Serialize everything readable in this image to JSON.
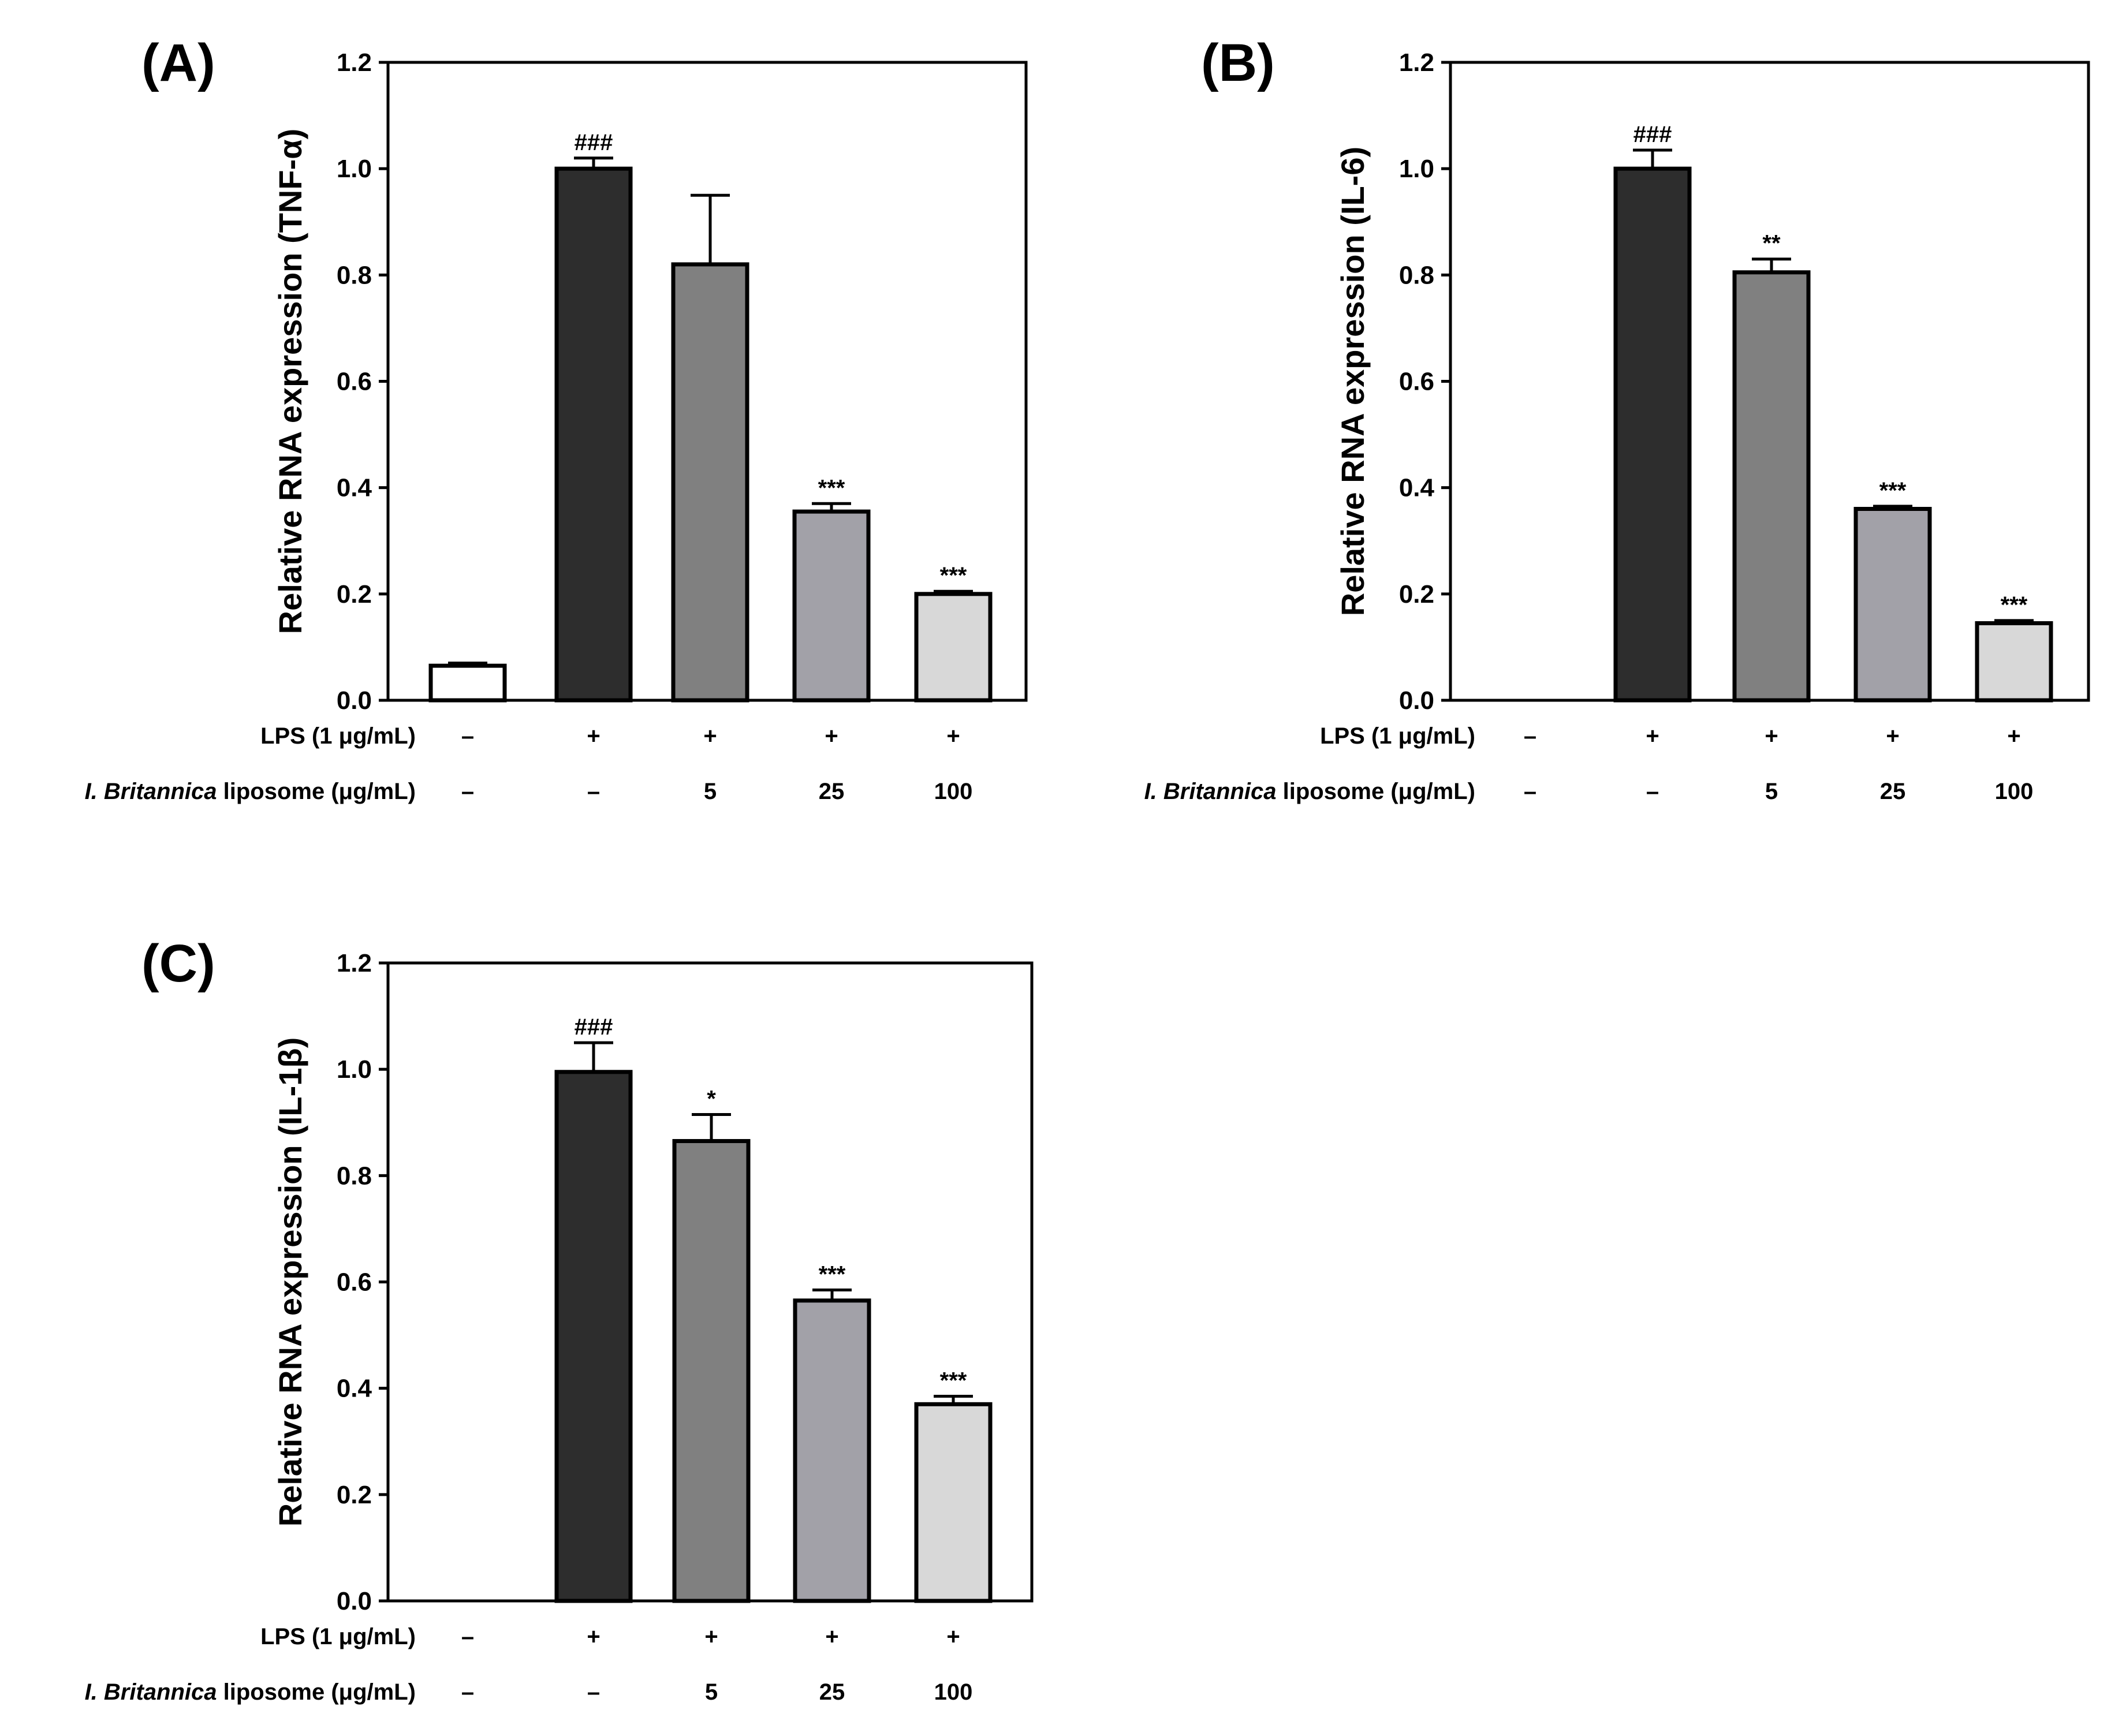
{
  "chart_data": [
    {
      "panel": "(A)",
      "type": "bar",
      "ylabel": "Relative RNA expression (TNF-α)",
      "ylim": [
        0,
        1.2
      ],
      "yticks": [
        "0.0",
        "0.2",
        "0.4",
        "0.6",
        "0.8",
        "1.0",
        "1.2"
      ],
      "values": [
        0.065,
        1.0,
        0.82,
        0.355,
        0.2
      ],
      "errors": [
        0.005,
        0.02,
        0.13,
        0.015,
        0.005
      ],
      "significance": [
        "",
        "###",
        "",
        "***",
        "***"
      ],
      "colors": [
        "#ffffff",
        "#2d2d2d",
        "#808080",
        "#a2a1a8",
        "#d8d8d8"
      ],
      "rows": [
        {
          "label": "LPS (1 μg/mL)",
          "values": [
            "–",
            "+",
            "+",
            "+",
            "+"
          ]
        },
        {
          "label_italic": "I. Britannica",
          "label": " liposome (μg/mL)",
          "values": [
            "–",
            "–",
            "5",
            "25",
            "100"
          ]
        }
      ]
    },
    {
      "panel": "(B)",
      "type": "bar",
      "ylabel": "Relative RNA expression (IL-6)",
      "ylim": [
        0,
        1.2
      ],
      "yticks": [
        "0.0",
        "0.2",
        "0.4",
        "0.6",
        "0.8",
        "1.0",
        "1.2"
      ],
      "values": [
        0,
        1.0,
        0.805,
        0.36,
        0.145
      ],
      "errors": [
        0,
        0.035,
        0.025,
        0.005,
        0.005
      ],
      "significance": [
        "",
        "###",
        "**",
        "***",
        "***"
      ],
      "colors": [
        "#ffffff",
        "#2d2d2d",
        "#808080",
        "#a2a1a8",
        "#d8d8d8"
      ],
      "rows": [
        {
          "label": "LPS (1 μg/mL)",
          "values": [
            "–",
            "+",
            "+",
            "+",
            "+"
          ]
        },
        {
          "label_italic": "I. Britannica",
          "label": " liposome (μg/mL)",
          "values": [
            "–",
            "–",
            "5",
            "25",
            "100"
          ]
        }
      ]
    },
    {
      "panel": "(C)",
      "type": "bar",
      "ylabel": "Relative RNA expression (IL-1β)",
      "ylim": [
        0,
        1.2
      ],
      "yticks": [
        "0.0",
        "0.2",
        "0.4",
        "0.6",
        "0.8",
        "1.0",
        "1.2"
      ],
      "values": [
        0,
        0.995,
        0.865,
        0.565,
        0.37
      ],
      "errors": [
        0,
        0.055,
        0.05,
        0.02,
        0.015
      ],
      "significance": [
        "",
        "###",
        "*",
        "***",
        "***"
      ],
      "colors": [
        "#ffffff",
        "#2d2d2d",
        "#808080",
        "#a2a1a8",
        "#d8d8d8"
      ],
      "rows": [
        {
          "label": "LPS (1 μg/mL)",
          "values": [
            "–",
            "+",
            "+",
            "+",
            "+"
          ]
        },
        {
          "label_italic": "I. Britannica",
          "label": " liposome (μg/mL)",
          "values": [
            "–",
            "–",
            "5",
            "25",
            "100"
          ]
        }
      ]
    }
  ]
}
